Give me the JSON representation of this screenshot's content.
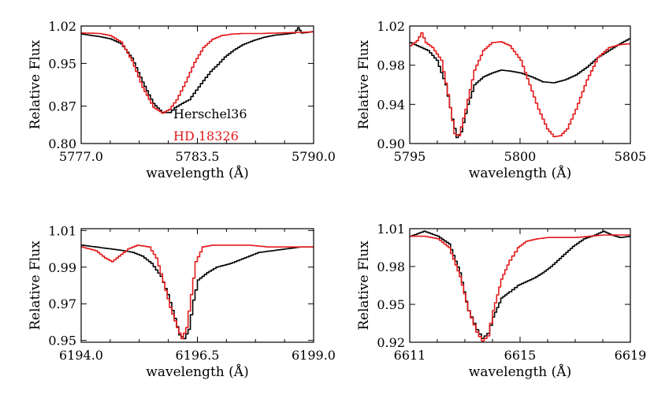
{
  "chart_data": [
    {
      "type": "line",
      "xlabel": "wavelength (Å)",
      "ylabel": "Relative Flux",
      "xlim": [
        5777.0,
        5790.0
      ],
      "ylim": [
        0.8,
        1.02
      ],
      "xticks": [
        5777.0,
        5783.5,
        5790.0
      ],
      "xtick_labels": [
        "5777.0",
        "5783.5",
        "5790.0"
      ],
      "yticks": [
        0.8,
        0.87,
        0.95,
        1.02
      ],
      "ytick_labels": [
        "0.80",
        "0.87",
        "0.95",
        "1.02"
      ],
      "legend": {
        "placement": "lower-right",
        "entries": [
          {
            "name": "Herschel36",
            "color": "#000000"
          },
          {
            "name": "HD 18326",
            "color": "#e31a1c"
          }
        ]
      },
      "series": [
        {
          "name": "Herschel36",
          "color": "#000000",
          "x": [
            5777.0,
            5778.0,
            5778.6,
            5779.2,
            5779.8,
            5780.4,
            5781.0,
            5781.5,
            5781.9,
            5782.2,
            5782.6,
            5783.0,
            5783.4,
            5783.8,
            5784.2,
            5784.6,
            5785.0,
            5785.5,
            5786.0,
            5786.6,
            5787.2,
            5787.8,
            5788.4,
            5788.9,
            5789.1,
            5789.3,
            5789.6,
            5790.0
          ],
          "y": [
            1.005,
            1.0,
            0.996,
            0.987,
            0.96,
            0.915,
            0.875,
            0.858,
            0.858,
            0.867,
            0.875,
            0.882,
            0.9,
            0.918,
            0.935,
            0.948,
            0.962,
            0.975,
            0.985,
            0.993,
            0.999,
            1.003,
            1.005,
            1.007,
            1.017,
            1.007,
            1.008,
            1.01
          ]
        },
        {
          "name": "HD 18326",
          "color": "#e31a1c",
          "x": [
            5777.0,
            5778.0,
            5778.6,
            5779.2,
            5779.8,
            5780.4,
            5781.0,
            5781.5,
            5781.9,
            5782.3,
            5782.8,
            5783.3,
            5783.8,
            5784.3,
            5784.8,
            5785.4,
            5786.0,
            5787.0,
            5788.0,
            5789.0,
            5790.0
          ],
          "y": [
            1.007,
            1.006,
            1.002,
            0.99,
            0.955,
            0.905,
            0.868,
            0.857,
            0.864,
            0.882,
            0.915,
            0.952,
            0.98,
            0.995,
            1.002,
            1.005,
            1.006,
            1.006,
            1.007,
            1.008,
            1.009
          ]
        }
      ]
    },
    {
      "type": "line",
      "xlabel": "wavelength (Å)",
      "ylabel": "Relative Flux",
      "xlim": [
        5795,
        5805
      ],
      "ylim": [
        0.9,
        1.02
      ],
      "xticks": [
        5795,
        5800,
        5805
      ],
      "xtick_labels": [
        "5795",
        "5800",
        "5805"
      ],
      "yticks": [
        0.9,
        0.94,
        0.98,
        1.02
      ],
      "ytick_labels": [
        "0.90",
        "0.94",
        "0.98",
        "1.02"
      ],
      "series": [
        {
          "name": "Herschel36",
          "color": "#000000",
          "x": [
            5795.0,
            5795.4,
            5795.8,
            5796.2,
            5796.6,
            5796.9,
            5797.1,
            5797.3,
            5797.6,
            5797.9,
            5798.3,
            5798.7,
            5799.1,
            5799.5,
            5800.0,
            5800.5,
            5801.0,
            5801.5,
            5802.0,
            5802.5,
            5803.0,
            5803.5,
            5804.0,
            5804.5,
            5805.0
          ],
          "y": [
            1.003,
            0.999,
            0.995,
            0.985,
            0.96,
            0.925,
            0.906,
            0.912,
            0.94,
            0.96,
            0.968,
            0.972,
            0.975,
            0.974,
            0.972,
            0.968,
            0.963,
            0.962,
            0.965,
            0.97,
            0.978,
            0.988,
            0.995,
            1.002,
            1.008
          ]
        },
        {
          "name": "HD 18326",
          "color": "#e31a1c",
          "x": [
            5795.0,
            5795.3,
            5795.5,
            5795.7,
            5796.0,
            5796.4,
            5796.7,
            5797.0,
            5797.2,
            5797.5,
            5797.9,
            5798.3,
            5798.7,
            5799.1,
            5799.5,
            5800.0,
            5800.4,
            5800.8,
            5801.2,
            5801.5,
            5801.8,
            5802.1,
            5802.5,
            5803.0,
            5803.5,
            5804.0,
            5804.5,
            5805.0
          ],
          "y": [
            1.0,
            1.005,
            1.013,
            1.003,
            0.998,
            0.985,
            0.95,
            0.91,
            0.908,
            0.935,
            0.975,
            0.995,
            1.003,
            1.004,
            1.0,
            0.985,
            0.96,
            0.935,
            0.915,
            0.907,
            0.908,
            0.915,
            0.935,
            0.965,
            0.988,
            0.998,
            1.001,
            1.002
          ]
        }
      ]
    },
    {
      "type": "line",
      "xlabel": "wavelength (Å)",
      "ylabel": "Relative Flux",
      "xlim": [
        6194.0,
        6199.0
      ],
      "ylim": [
        0.949,
        1.011
      ],
      "xticks": [
        6194.0,
        6196.5,
        6199.0
      ],
      "xtick_labels": [
        "6194.0",
        "6196.5",
        "6199.0"
      ],
      "yticks": [
        0.95,
        0.97,
        0.99,
        1.01
      ],
      "ytick_labels": [
        "0.95",
        "0.97",
        "0.99",
        "1.01"
      ],
      "series": [
        {
          "name": "Herschel36",
          "color": "#000000",
          "x": [
            6194.0,
            6194.3,
            6194.6,
            6194.9,
            6195.1,
            6195.3,
            6195.5,
            6195.7,
            6195.85,
            6196.0,
            6196.1,
            6196.2,
            6196.3,
            6196.4,
            6196.5,
            6196.7,
            6196.9,
            6197.2,
            6197.5,
            6197.8,
            6198.1,
            6198.4,
            6198.7,
            6199.0
          ],
          "y": [
            1.002,
            1.001,
            1.0,
            0.999,
            0.998,
            0.996,
            0.992,
            0.985,
            0.975,
            0.962,
            0.953,
            0.951,
            0.956,
            0.972,
            0.983,
            0.987,
            0.99,
            0.992,
            0.995,
            0.998,
            0.999,
            1.0,
            1.001,
            1.001
          ]
        },
        {
          "name": "HD 18326",
          "color": "#e31a1c",
          "x": [
            6194.0,
            6194.3,
            6194.5,
            6194.65,
            6194.8,
            6195.0,
            6195.2,
            6195.45,
            6195.6,
            6195.75,
            6195.9,
            6196.05,
            6196.15,
            6196.25,
            6196.35,
            6196.45,
            6196.6,
            6196.8,
            6197.2,
            6197.6,
            6198.0,
            6198.5,
            6199.0
          ],
          "y": [
            1.001,
            0.999,
            0.995,
            0.993,
            0.996,
            1.0,
            1.002,
            1.001,
            0.995,
            0.982,
            0.968,
            0.957,
            0.951,
            0.957,
            0.975,
            0.993,
            1.001,
            1.002,
            1.002,
            1.002,
            1.001,
            1.001,
            1.001
          ]
        }
      ]
    },
    {
      "type": "line",
      "xlabel": "wavelength (Å)",
      "ylabel": "Relative Flux",
      "xlim": [
        6611,
        6619
      ],
      "ylim": [
        0.92,
        1.01
      ],
      "xticks": [
        6611,
        6615,
        6619
      ],
      "xtick_labels": [
        "6611",
        "6615",
        "6619"
      ],
      "yticks": [
        0.92,
        0.95,
        0.98,
        1.01
      ],
      "ytick_labels": [
        "0.92",
        "0.95",
        "0.98",
        "1.01"
      ],
      "series": [
        {
          "name": "Herschel36",
          "color": "#000000",
          "x": [
            6611.0,
            6611.5,
            6612.0,
            6612.4,
            6612.8,
            6613.1,
            6613.4,
            6613.6,
            6613.8,
            6614.0,
            6614.3,
            6614.6,
            6614.9,
            6615.2,
            6615.5,
            6615.8,
            6616.1,
            6616.5,
            6616.9,
            6617.3,
            6617.7,
            6618.0,
            6618.3,
            6618.6,
            6619.0
          ],
          "y": [
            1.004,
            1.008,
            1.004,
            0.998,
            0.975,
            0.945,
            0.93,
            0.923,
            0.927,
            0.94,
            0.955,
            0.96,
            0.965,
            0.968,
            0.971,
            0.975,
            0.98,
            0.988,
            0.996,
            1.002,
            1.005,
            1.008,
            1.005,
            1.003,
            1.004
          ]
        },
        {
          "name": "HD 18326",
          "color": "#e31a1c",
          "x": [
            6611.0,
            6611.5,
            6612.0,
            6612.4,
            6612.8,
            6613.1,
            6613.4,
            6613.6,
            6613.8,
            6614.0,
            6614.3,
            6614.6,
            6614.9,
            6615.2,
            6615.6,
            6616.0,
            6616.5,
            6617.0,
            6617.5,
            6618.0,
            6618.5,
            6619.0
          ],
          "y": [
            1.004,
            1.004,
            1.002,
            0.995,
            0.972,
            0.945,
            0.928,
            0.921,
            0.925,
            0.945,
            0.97,
            0.985,
            0.995,
            1.0,
            1.002,
            1.003,
            1.003,
            1.003,
            1.004,
            1.005,
            1.005,
            1.005
          ]
        }
      ]
    }
  ]
}
